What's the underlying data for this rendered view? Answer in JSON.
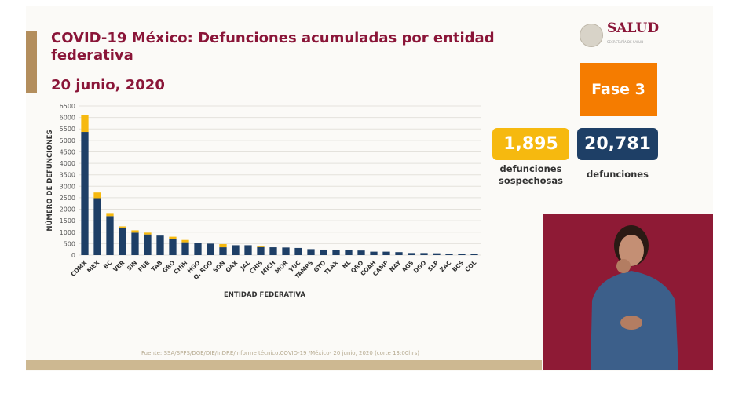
{
  "header": {
    "title": "COVID-19 México: Defunciones acumuladas por entidad federativa",
    "date": "20 junio, 2020"
  },
  "logo": {
    "name": "SALUD",
    "subtitle": "SECRETARÍA DE SALUD"
  },
  "phase": {
    "label": "Fase 3",
    "color": "#f57c00"
  },
  "kpis": [
    {
      "value": "1,895",
      "label": "defunciones sospechosas",
      "color": "#f6b90f"
    },
    {
      "value": "20,781",
      "label": "defunciones",
      "color": "#1e3f66"
    }
  ],
  "source": "Fuente: SSA/SPPS/DGE/DIE/InDRE/Informe técnico.COVID-19 /México- 20 junio, 2020 (corte 13:00hrs)",
  "chart_data": {
    "type": "bar",
    "stacked": true,
    "xlabel": "ENTIDAD FEDERATIVA",
    "ylabel": "NÚMERO DE DEFUNCIONES",
    "ylim": [
      0,
      6500
    ],
    "yticks": [
      0,
      500,
      1000,
      1500,
      2000,
      2500,
      3000,
      3500,
      4000,
      4500,
      5000,
      5500,
      6000,
      6500
    ],
    "grid": true,
    "categories": [
      "CDMX",
      "MEX",
      "BC",
      "VER",
      "SIN",
      "PUE",
      "TAB",
      "GRO",
      "CHIH",
      "HGO",
      "Q. ROO",
      "SON",
      "OAX",
      "JAL",
      "CHIS",
      "MICH",
      "MOR",
      "YUC",
      "TAMPS",
      "GTO",
      "TLAX",
      "NL",
      "QRO",
      "COAH",
      "CAMP",
      "NAY",
      "AGS",
      "DGO",
      "SLP",
      "ZAC",
      "BCS",
      "COL"
    ],
    "series": [
      {
        "color": "#1e3f66",
        "values": [
          5370,
          2480,
          1700,
          1200,
          980,
          900,
          850,
          700,
          560,
          520,
          500,
          340,
          430,
          430,
          350,
          340,
          330,
          310,
          260,
          240,
          230,
          220,
          200,
          150,
          150,
          130,
          90,
          90,
          80,
          50,
          50,
          40
        ]
      },
      {
        "color": "#f6b90f",
        "values": [
          730,
          250,
          100,
          50,
          100,
          80,
          0,
          100,
          100,
          0,
          0,
          140,
          0,
          0,
          50,
          0,
          0,
          0,
          0,
          0,
          0,
          0,
          0,
          0,
          0,
          0,
          0,
          0,
          0,
          0,
          0,
          0
        ]
      }
    ]
  }
}
